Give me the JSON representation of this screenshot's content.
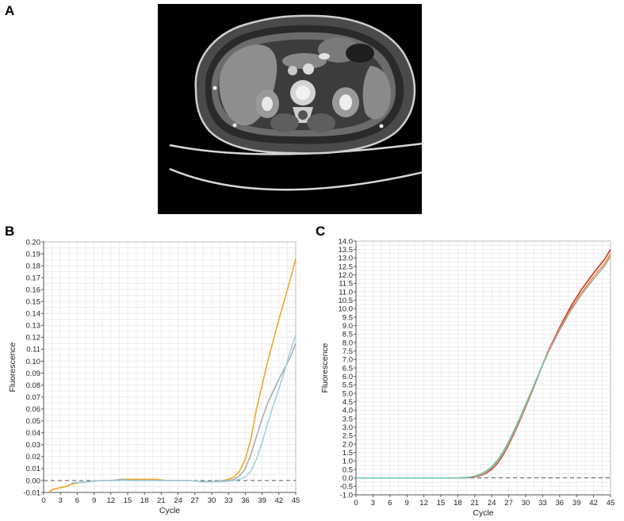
{
  "panels": {
    "a_label": "A",
    "b_label": "B",
    "c_label": "C"
  },
  "ct_scan": {
    "type": "axial abdominal CT image"
  },
  "chart_data": [
    {
      "type": "line",
      "panel": "B",
      "xlabel": "Cycle",
      "ylabel": "Fluorescence",
      "xlim": [
        0,
        45
      ],
      "ylim": [
        -0.01,
        0.2
      ],
      "xticks": [
        0,
        3,
        6,
        9,
        12,
        15,
        18,
        21,
        24,
        27,
        30,
        33,
        36,
        39,
        42,
        45
      ],
      "yticks": [
        -0.01,
        0.0,
        0.01,
        0.02,
        0.03,
        0.04,
        0.05,
        0.06,
        0.07,
        0.08,
        0.09,
        0.1,
        0.11,
        0.12,
        0.13,
        0.14,
        0.15,
        0.16,
        0.17,
        0.18,
        0.19,
        0.2
      ],
      "ytick_labels": [
        "-0.01",
        "0.00",
        "0.01",
        "0.02",
        "0.03",
        "0.04",
        "0.05",
        "0.06",
        "0.07",
        "0.08",
        "0.09",
        "0.10",
        "0.11",
        "0.12",
        "0.13",
        "0.14",
        "0.15",
        "0.16",
        "0.17",
        "0.18",
        "0.19",
        "0.20"
      ],
      "grid": true,
      "threshold": 0.0,
      "series": [
        {
          "color": "#f0a21c",
          "x": [
            1,
            2,
            3,
            4,
            5,
            6,
            8,
            10,
            12,
            14,
            16,
            18,
            20,
            22,
            24,
            26,
            28,
            30,
            31,
            32,
            33,
            34,
            35,
            36,
            37,
            38,
            40,
            42,
            44,
            45
          ],
          "y": [
            -0.009,
            -0.007,
            -0.006,
            -0.005,
            -0.003,
            -0.002,
            -0.001,
            0.0,
            0.0,
            0.001,
            0.001,
            0.001,
            0.001,
            0.0,
            0.0,
            0.0,
            -0.001,
            -0.001,
            -0.001,
            0.0,
            0.001,
            0.003,
            0.008,
            0.018,
            0.035,
            0.06,
            0.1,
            0.135,
            0.168,
            0.186
          ]
        },
        {
          "color": "#a9a9a9",
          "x": [
            5,
            8,
            10,
            12,
            14,
            16,
            18,
            20,
            22,
            24,
            26,
            28,
            30,
            32,
            33,
            34,
            35,
            36,
            37,
            38,
            39,
            40,
            42,
            44,
            45
          ],
          "y": [
            -0.002,
            -0.001,
            0.0,
            0.0,
            0.001,
            0.0,
            0.0,
            0.0,
            0.0,
            0.0,
            0.0,
            -0.001,
            -0.001,
            0.0,
            0.0,
            0.001,
            0.004,
            0.01,
            0.022,
            0.037,
            0.052,
            0.065,
            0.085,
            0.103,
            0.115
          ]
        },
        {
          "color": "#9fcfe0",
          "x": [
            5,
            8,
            10,
            12,
            14,
            16,
            18,
            20,
            22,
            24,
            26,
            28,
            30,
            32,
            34,
            35,
            36,
            37,
            38,
            39,
            40,
            41,
            42,
            43,
            44,
            45
          ],
          "y": [
            -0.002,
            -0.001,
            0.0,
            0.0,
            0.0,
            0.0,
            0.0,
            0.0,
            0.0,
            0.0,
            0.0,
            -0.001,
            -0.001,
            -0.001,
            0.0,
            0.001,
            0.003,
            0.008,
            0.018,
            0.032,
            0.048,
            0.063,
            0.077,
            0.092,
            0.108,
            0.122
          ]
        }
      ]
    },
    {
      "type": "line",
      "panel": "C",
      "xlabel": "Cycle",
      "ylabel": "Fluorescence",
      "xlim": [
        0,
        45
      ],
      "ylim": [
        -1.0,
        14.0
      ],
      "xticks": [
        0,
        3,
        6,
        9,
        12,
        15,
        18,
        21,
        24,
        27,
        30,
        33,
        36,
        39,
        42,
        45
      ],
      "yticks": [
        -1.0,
        -0.5,
        0.0,
        0.5,
        1.0,
        1.5,
        2.0,
        2.5,
        3.0,
        3.5,
        4.0,
        4.5,
        5.0,
        5.5,
        6.0,
        6.5,
        7.0,
        7.5,
        8.0,
        8.5,
        9.0,
        9.5,
        10.0,
        10.5,
        11.0,
        11.5,
        12.0,
        12.5,
        13.0,
        13.5,
        14.0
      ],
      "ytick_labels": [
        "-1.0",
        "-0.5",
        "0.0",
        "0.5",
        "1.0",
        "1.5",
        "2.0",
        "2.5",
        "3.0",
        "3.5",
        "4.0",
        "4.5",
        "5.0",
        "5.5",
        "6.0",
        "6.5",
        "7.0",
        "7.5",
        "8.0",
        "8.5",
        "9.0",
        "9.5",
        "10.0",
        "10.5",
        "11.0",
        "11.5",
        "12.0",
        "12.5",
        "13.0",
        "13.5",
        "14.0"
      ],
      "grid": true,
      "threshold": 0.0,
      "series": [
        {
          "color": "#cc2a1e",
          "x": [
            0,
            6,
            12,
            18,
            20,
            21,
            22,
            23,
            24,
            25,
            26,
            27,
            28,
            29,
            30,
            31,
            32,
            33,
            34,
            36,
            38,
            40,
            42,
            44,
            45
          ],
          "y": [
            0.0,
            0.0,
            0.0,
            0.0,
            0.02,
            0.06,
            0.14,
            0.28,
            0.5,
            0.85,
            1.35,
            1.95,
            2.65,
            3.4,
            4.2,
            5.0,
            5.85,
            6.7,
            7.5,
            8.9,
            10.15,
            11.2,
            12.1,
            12.95,
            13.5
          ]
        },
        {
          "color": "#e8923a",
          "x": [
            0,
            6,
            12,
            18,
            20,
            21,
            22,
            23,
            24,
            25,
            26,
            27,
            28,
            29,
            30,
            31,
            32,
            33,
            34,
            36,
            38,
            40,
            42,
            44,
            45
          ],
          "y": [
            0.0,
            0.0,
            0.0,
            0.0,
            0.03,
            0.08,
            0.17,
            0.32,
            0.56,
            0.92,
            1.42,
            2.02,
            2.72,
            3.46,
            4.25,
            5.05,
            5.88,
            6.7,
            7.45,
            8.8,
            10.0,
            11.0,
            11.9,
            12.7,
            13.25
          ]
        },
        {
          "color": "#a9a9a9",
          "x": [
            0,
            6,
            12,
            18,
            20,
            21,
            22,
            23,
            24,
            25,
            26,
            27,
            28,
            29,
            30,
            31,
            32,
            33,
            34,
            36,
            38,
            40,
            42,
            44,
            45
          ],
          "y": [
            0.0,
            0.0,
            0.0,
            0.0,
            0.03,
            0.09,
            0.19,
            0.35,
            0.6,
            0.97,
            1.48,
            2.08,
            2.78,
            3.52,
            4.3,
            5.1,
            5.9,
            6.7,
            7.42,
            8.72,
            9.9,
            10.9,
            11.75,
            12.55,
            13.1
          ]
        },
        {
          "color": "#6cc2a6",
          "x": [
            0,
            6,
            12,
            18,
            20,
            21,
            22,
            23,
            24,
            25,
            26,
            27,
            28,
            29,
            30,
            31,
            32,
            33,
            34
          ],
          "y": [
            0.0,
            0.0,
            0.0,
            0.0,
            0.04,
            0.11,
            0.22,
            0.4,
            0.66,
            1.04,
            1.55,
            2.15,
            2.85,
            3.58,
            4.35,
            5.12,
            5.9,
            6.68,
            7.4
          ]
        }
      ]
    }
  ]
}
